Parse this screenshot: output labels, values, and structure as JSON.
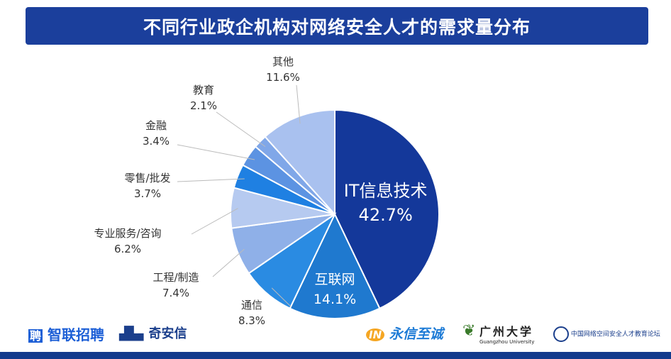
{
  "chart_data": {
    "type": "pie",
    "title": "不同行业政企机构对网络安全人才的需求量分布",
    "start": "top",
    "direction": "clockwise",
    "slices": [
      {
        "label": "IT信息技术",
        "value": 42.7,
        "display": "42.7%",
        "color": "#14389a"
      },
      {
        "label": "互联网",
        "value": 14.1,
        "display": "14.1%",
        "color": "#1f79cf"
      },
      {
        "label": "通信",
        "value": 8.3,
        "display": "8.3%",
        "color": "#2a8be2"
      },
      {
        "label": "工程/制造",
        "value": 7.4,
        "display": "7.4%",
        "color": "#8fb0e8"
      },
      {
        "label": "专业服务/咨询",
        "value": 6.2,
        "display": "6.2%",
        "color": "#b6caf0"
      },
      {
        "label": "零售/批发",
        "value": 3.7,
        "display": "3.7%",
        "color": "#1f80e2"
      },
      {
        "label": "金融",
        "value": 3.4,
        "display": "3.4%",
        "color": "#5c93e2"
      },
      {
        "label": "教育",
        "value": 2.1,
        "display": "2.1%",
        "color": "#80a7e8"
      },
      {
        "label": "其他",
        "value": 11.6,
        "display": "11.6%",
        "color": "#a9c1ef"
      }
    ]
  },
  "logos": {
    "zhaopin": "智联招聘",
    "qianxin": "奇安信",
    "yongxin": "永信至诚",
    "gzhu": "广州大学",
    "gzhu_en": "Guangzhou University",
    "alliance": "中国网络空间安全人才教育论坛"
  }
}
